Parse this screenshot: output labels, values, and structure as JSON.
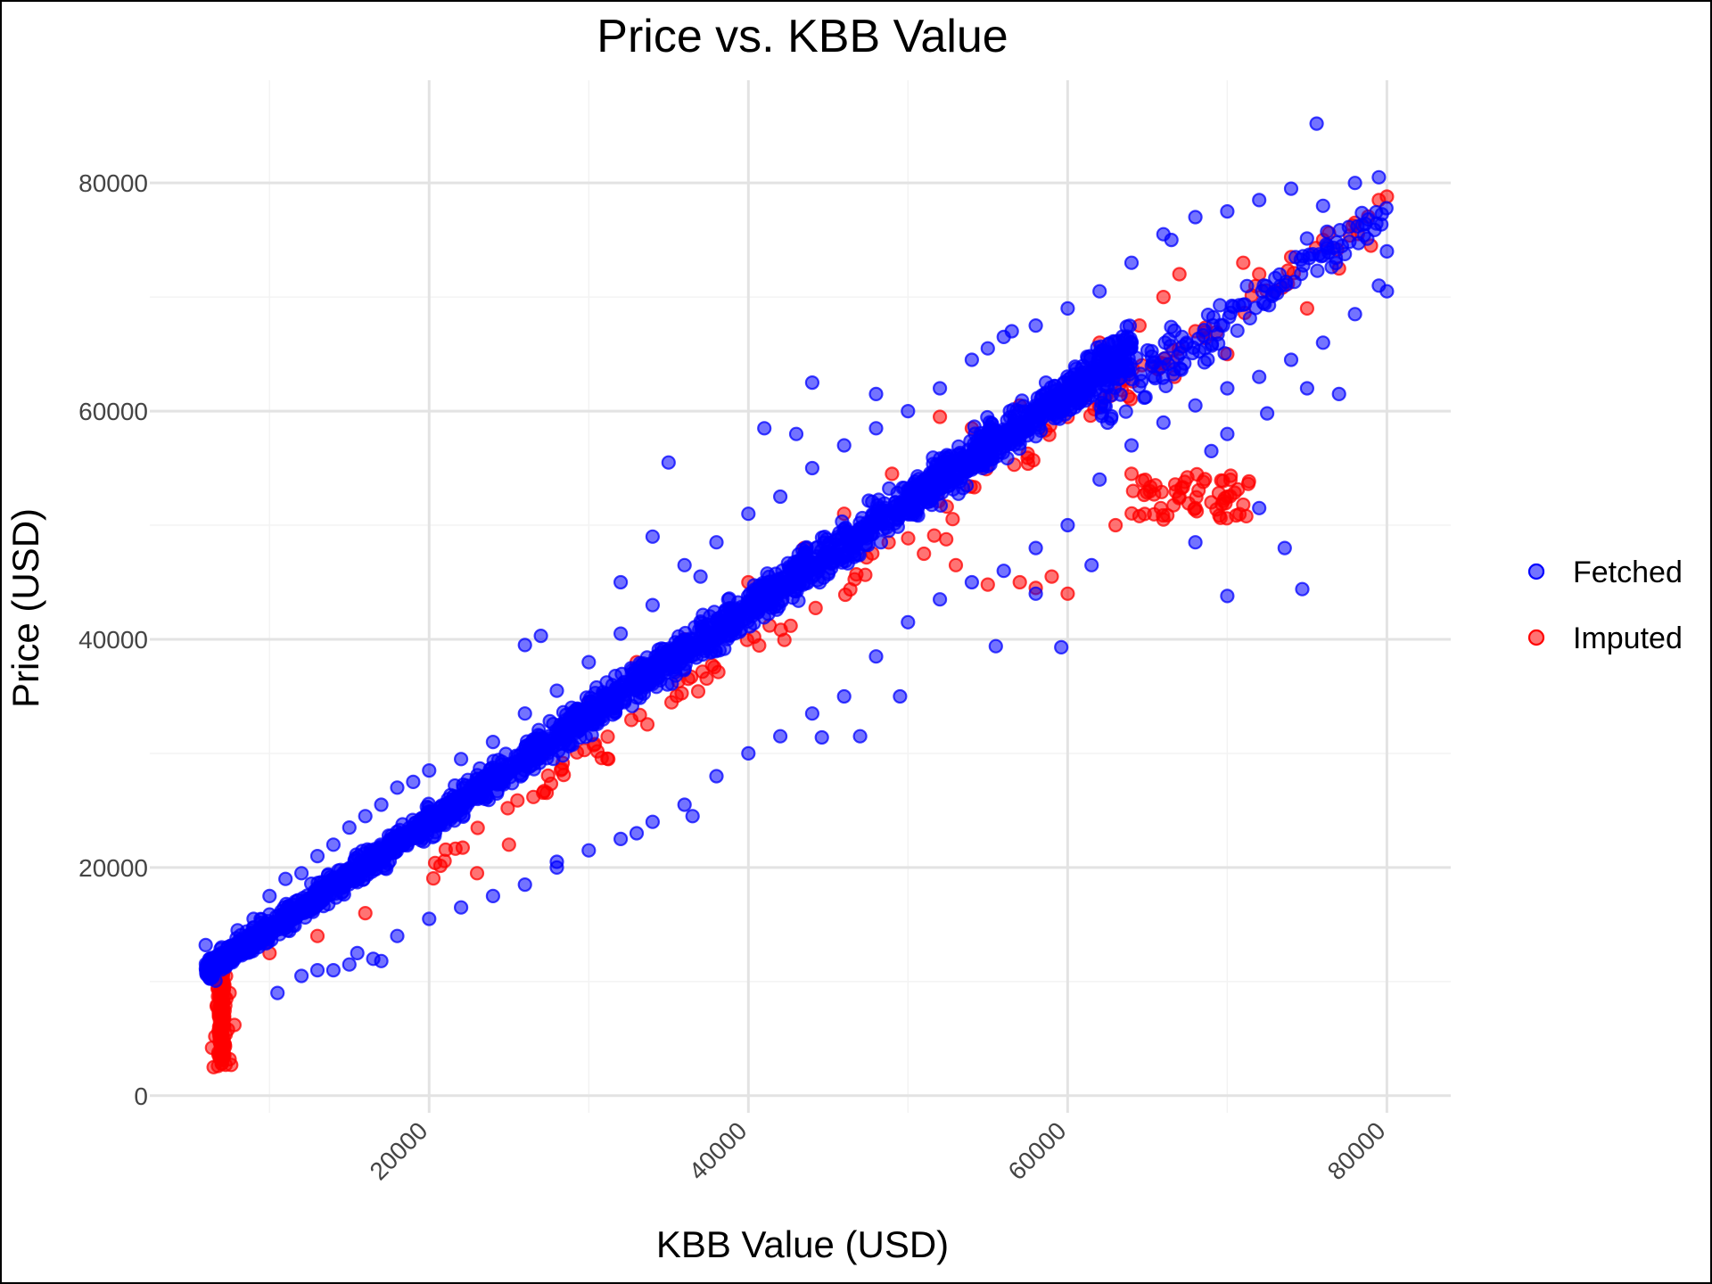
{
  "chart_data": {
    "type": "scatter",
    "title": "Price vs. KBB Value",
    "xlabel": "KBB Value (USD)",
    "ylabel": "Price (USD)",
    "xlim": [
      2500,
      84000
    ],
    "ylim": [
      -1500,
      89000
    ],
    "x_ticks": [
      20000,
      40000,
      60000,
      80000
    ],
    "x_tick_labels": [
      "20000",
      "40000",
      "60000",
      "80000"
    ],
    "y_ticks": [
      0,
      20000,
      40000,
      60000,
      80000
    ],
    "y_tick_labels": [
      "0",
      "20000",
      "40000",
      "60000",
      "80000"
    ],
    "x_minor_ticks": [
      10000,
      30000,
      50000,
      70000
    ],
    "y_minor_ticks": [
      10000,
      30000,
      50000,
      70000
    ],
    "grid": true,
    "legend_position": "right",
    "series": [
      {
        "name": "Fetched",
        "color": "#0000ff",
        "opacity": 0.55,
        "points": [
          [
            6000,
            13200
          ],
          [
            6500,
            12000
          ],
          [
            7000,
            13000
          ],
          [
            8000,
            14500
          ],
          [
            9000,
            15500
          ],
          [
            10000,
            17500
          ],
          [
            11000,
            19000
          ],
          [
            12000,
            19500
          ],
          [
            13000,
            21000
          ],
          [
            14000,
            22000
          ],
          [
            15000,
            23500
          ],
          [
            16000,
            24500
          ],
          [
            17000,
            25500
          ],
          [
            18000,
            27000
          ],
          [
            19000,
            27500
          ],
          [
            20000,
            28500
          ],
          [
            22000,
            29500
          ],
          [
            24000,
            31000
          ],
          [
            26000,
            33500
          ],
          [
            28000,
            35500
          ],
          [
            30000,
            38000
          ],
          [
            32000,
            40500
          ],
          [
            34000,
            43000
          ],
          [
            36000,
            46500
          ],
          [
            38000,
            48500
          ],
          [
            40000,
            51000
          ],
          [
            42000,
            52500
          ],
          [
            44000,
            55000
          ],
          [
            46000,
            57000
          ],
          [
            48000,
            58500
          ],
          [
            50000,
            60000
          ],
          [
            52000,
            62000
          ],
          [
            54000,
            64500
          ],
          [
            56000,
            66500
          ],
          [
            58000,
            67500
          ],
          [
            60000,
            69000
          ],
          [
            62000,
            70500
          ],
          [
            64000,
            73000
          ],
          [
            66000,
            75500
          ],
          [
            68000,
            77000
          ],
          [
            70000,
            77500
          ],
          [
            72000,
            78500
          ],
          [
            74000,
            79500
          ],
          [
            76000,
            78000
          ],
          [
            78000,
            80000
          ],
          [
            79500,
            80500
          ],
          [
            10500,
            9000
          ],
          [
            12000,
            10500
          ],
          [
            14000,
            11000
          ],
          [
            15000,
            11500
          ],
          [
            16500,
            12000
          ],
          [
            18000,
            14000
          ],
          [
            20000,
            15500
          ],
          [
            22000,
            16500
          ],
          [
            24000,
            17500
          ],
          [
            26000,
            18500
          ],
          [
            28000,
            20000
          ],
          [
            30000,
            21500
          ],
          [
            32000,
            22500
          ],
          [
            34000,
            24000
          ],
          [
            36000,
            25500
          ],
          [
            38000,
            28000
          ],
          [
            40000,
            30000
          ],
          [
            42000,
            31500
          ],
          [
            44000,
            33500
          ],
          [
            46000,
            35000
          ],
          [
            48000,
            38500
          ],
          [
            50000,
            41500
          ],
          [
            52000,
            43500
          ],
          [
            54000,
            45000
          ],
          [
            56000,
            46000
          ],
          [
            58000,
            48000
          ],
          [
            60000,
            50000
          ],
          [
            62000,
            54000
          ],
          [
            64000,
            57000
          ],
          [
            66000,
            59000
          ],
          [
            68000,
            60500
          ],
          [
            70000,
            62000
          ],
          [
            72000,
            63000
          ],
          [
            74000,
            64500
          ],
          [
            76000,
            66000
          ],
          [
            78000,
            68500
          ],
          [
            80000,
            70500
          ],
          [
            35000,
            55500
          ],
          [
            34000,
            49000
          ],
          [
            32000,
            45000
          ],
          [
            26000,
            39500
          ],
          [
            27000,
            40300
          ],
          [
            37000,
            45500
          ],
          [
            41000,
            58500
          ],
          [
            43000,
            58000
          ],
          [
            44000,
            62500
          ],
          [
            48000,
            61500
          ],
          [
            55000,
            65500
          ],
          [
            56500,
            67000
          ],
          [
            75600,
            85200
          ],
          [
            70000,
            43800
          ],
          [
            74700,
            44400
          ],
          [
            73600,
            48000
          ],
          [
            59600,
            39300
          ],
          [
            55500,
            39400
          ],
          [
            58000,
            44000
          ],
          [
            61500,
            46500
          ],
          [
            68000,
            48500
          ],
          [
            72000,
            51500
          ],
          [
            44600,
            31400
          ],
          [
            47000,
            31500
          ],
          [
            49500,
            35000
          ],
          [
            36500,
            24500
          ],
          [
            33000,
            23000
          ],
          [
            28000,
            20500
          ],
          [
            17000,
            11800
          ],
          [
            15500,
            12500
          ],
          [
            13000,
            11000
          ],
          [
            69000,
            56500
          ],
          [
            70000,
            58000
          ],
          [
            72500,
            59800
          ],
          [
            75000,
            62000
          ],
          [
            77000,
            61500
          ],
          [
            79500,
            71000
          ],
          [
            80000,
            74000
          ],
          [
            66500,
            75000
          ]
        ]
      },
      {
        "name": "Imputed",
        "color": "#ff0000",
        "opacity": 0.55,
        "points": [
          [
            6500,
            2500
          ],
          [
            7000,
            2800
          ],
          [
            7500,
            3200
          ],
          [
            6800,
            3800
          ],
          [
            7200,
            4500
          ],
          [
            6600,
            5200
          ],
          [
            7400,
            5800
          ],
          [
            6900,
            6500
          ],
          [
            7100,
            7200
          ],
          [
            6700,
            7800
          ],
          [
            7300,
            8500
          ],
          [
            7000,
            9200
          ],
          [
            6800,
            10000
          ],
          [
            7600,
            2700
          ],
          [
            6400,
            4200
          ],
          [
            7800,
            6200
          ],
          [
            7500,
            9000
          ],
          [
            6600,
            10800
          ],
          [
            64000,
            54500
          ],
          [
            65500,
            53500
          ],
          [
            67000,
            52500
          ],
          [
            68000,
            51500
          ],
          [
            69000,
            52000
          ],
          [
            70000,
            52500
          ],
          [
            71000,
            51800
          ],
          [
            66000,
            50500
          ],
          [
            63000,
            50000
          ],
          [
            64500,
            50800
          ],
          [
            68500,
            53800
          ],
          [
            67500,
            54200
          ],
          [
            57000,
            45000
          ],
          [
            58000,
            44500
          ],
          [
            59000,
            45500
          ],
          [
            60000,
            44000
          ],
          [
            55000,
            44800
          ],
          [
            51000,
            47500
          ],
          [
            53000,
            46500
          ],
          [
            72000,
            72000
          ],
          [
            74000,
            73500
          ],
          [
            76000,
            75000
          ],
          [
            78000,
            76500
          ],
          [
            79500,
            78500
          ],
          [
            73000,
            70500
          ],
          [
            75000,
            69000
          ],
          [
            77000,
            72500
          ],
          [
            79000,
            74500
          ],
          [
            80000,
            78800
          ],
          [
            71000,
            73000
          ],
          [
            67000,
            72000
          ],
          [
            66000,
            70000
          ],
          [
            64500,
            67500
          ],
          [
            62000,
            66000
          ],
          [
            60000,
            62000
          ],
          [
            57000,
            60500
          ],
          [
            54000,
            58500
          ],
          [
            52000,
            59500
          ],
          [
            49000,
            54500
          ],
          [
            46000,
            51000
          ],
          [
            43500,
            48000
          ],
          [
            40000,
            45000
          ],
          [
            36000,
            40000
          ],
          [
            33000,
            38000
          ],
          [
            30000,
            34500
          ],
          [
            27000,
            30000
          ],
          [
            25000,
            22000
          ],
          [
            23000,
            19500
          ],
          [
            16000,
            16000
          ],
          [
            13000,
            14000
          ],
          [
            10000,
            12500
          ],
          [
            68000,
            67000
          ],
          [
            70000,
            65000
          ]
        ]
      }
    ]
  }
}
